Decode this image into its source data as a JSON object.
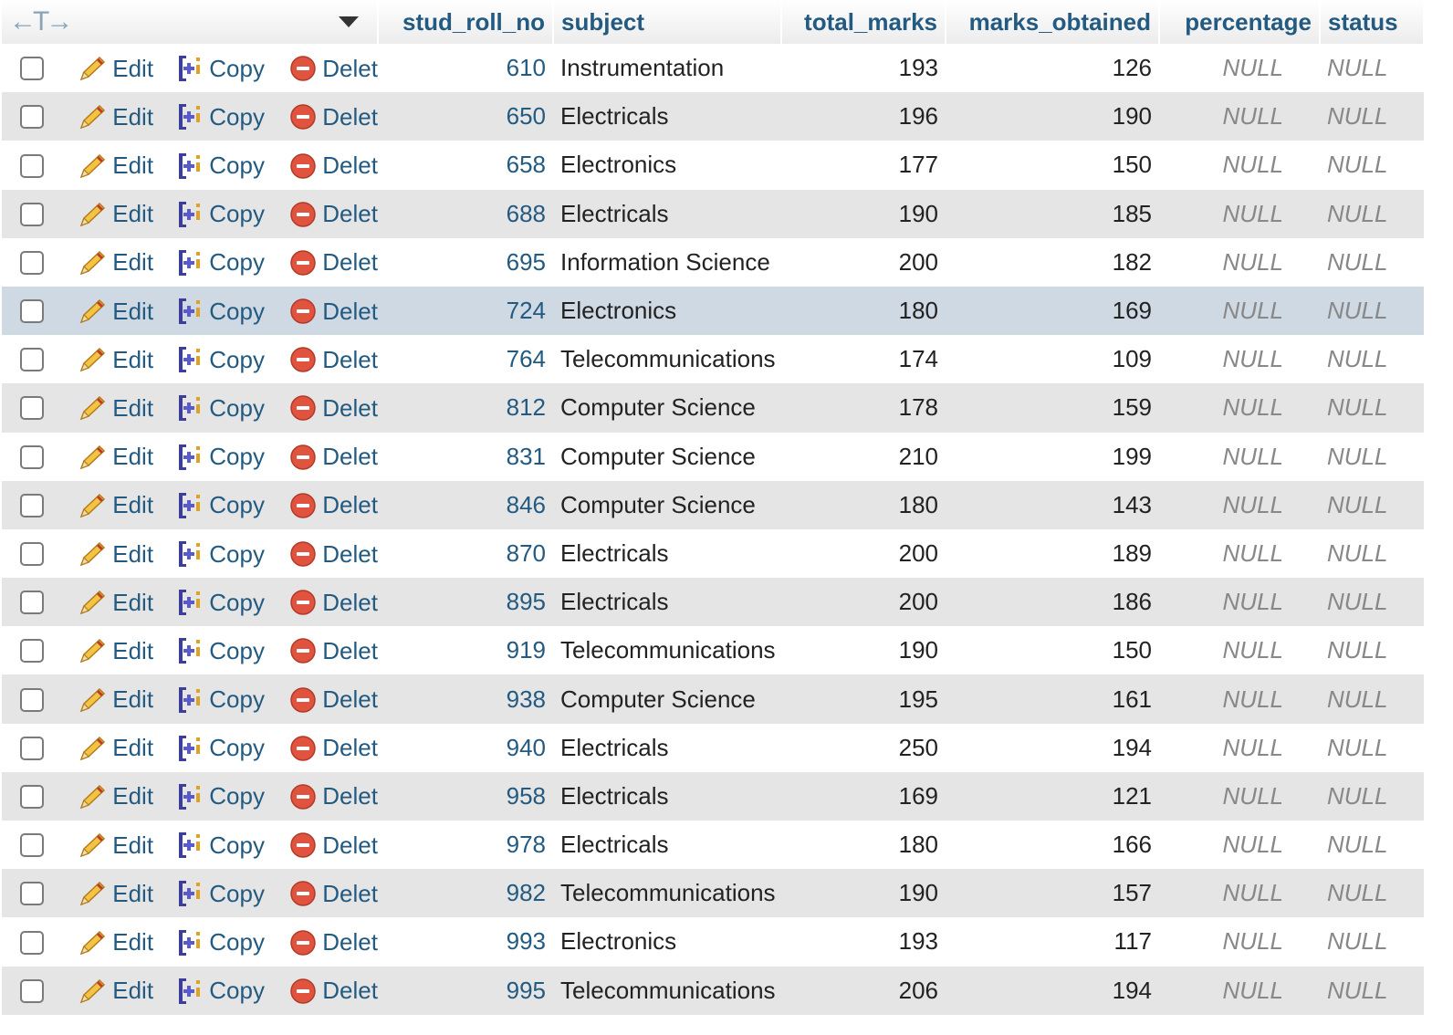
{
  "header": {
    "arrows_label": "←T→",
    "columns": [
      "stud_roll_no",
      "subject",
      "total_marks",
      "marks_obtained",
      "percentage",
      "status"
    ]
  },
  "actions": {
    "edit": "Edit",
    "copy": "Copy",
    "delete": "Delete"
  },
  "rows": [
    {
      "roll": "610",
      "subject": "Instrumentation",
      "total": "193",
      "obtained": "126",
      "percentage": "NULL",
      "status": "NULL"
    },
    {
      "roll": "650",
      "subject": "Electricals",
      "total": "196",
      "obtained": "190",
      "percentage": "NULL",
      "status": "NULL"
    },
    {
      "roll": "658",
      "subject": "Electronics",
      "total": "177",
      "obtained": "150",
      "percentage": "NULL",
      "status": "NULL"
    },
    {
      "roll": "688",
      "subject": "Electricals",
      "total": "190",
      "obtained": "185",
      "percentage": "NULL",
      "status": "NULL"
    },
    {
      "roll": "695",
      "subject": "Information Science",
      "total": "200",
      "obtained": "182",
      "percentage": "NULL",
      "status": "NULL"
    },
    {
      "roll": "724",
      "subject": "Electronics",
      "total": "180",
      "obtained": "169",
      "percentage": "NULL",
      "status": "NULL",
      "highlighted": true
    },
    {
      "roll": "764",
      "subject": "Telecommunications",
      "total": "174",
      "obtained": "109",
      "percentage": "NULL",
      "status": "NULL"
    },
    {
      "roll": "812",
      "subject": "Computer Science",
      "total": "178",
      "obtained": "159",
      "percentage": "NULL",
      "status": "NULL"
    },
    {
      "roll": "831",
      "subject": "Computer Science",
      "total": "210",
      "obtained": "199",
      "percentage": "NULL",
      "status": "NULL"
    },
    {
      "roll": "846",
      "subject": "Computer Science",
      "total": "180",
      "obtained": "143",
      "percentage": "NULL",
      "status": "NULL"
    },
    {
      "roll": "870",
      "subject": "Electricals",
      "total": "200",
      "obtained": "189",
      "percentage": "NULL",
      "status": "NULL"
    },
    {
      "roll": "895",
      "subject": "Electricals",
      "total": "200",
      "obtained": "186",
      "percentage": "NULL",
      "status": "NULL"
    },
    {
      "roll": "919",
      "subject": "Telecommunications",
      "total": "190",
      "obtained": "150",
      "percentage": "NULL",
      "status": "NULL"
    },
    {
      "roll": "938",
      "subject": "Computer Science",
      "total": "195",
      "obtained": "161",
      "percentage": "NULL",
      "status": "NULL"
    },
    {
      "roll": "940",
      "subject": "Electricals",
      "total": "250",
      "obtained": "194",
      "percentage": "NULL",
      "status": "NULL"
    },
    {
      "roll": "958",
      "subject": "Electricals",
      "total": "169",
      "obtained": "121",
      "percentage": "NULL",
      "status": "NULL"
    },
    {
      "roll": "978",
      "subject": "Electricals",
      "total": "180",
      "obtained": "166",
      "percentage": "NULL",
      "status": "NULL"
    },
    {
      "roll": "982",
      "subject": "Telecommunications",
      "total": "190",
      "obtained": "157",
      "percentage": "NULL",
      "status": "NULL"
    },
    {
      "roll": "993",
      "subject": "Electronics",
      "total": "193",
      "obtained": "117",
      "percentage": "NULL",
      "status": "NULL"
    },
    {
      "roll": "995",
      "subject": "Telecommunications",
      "total": "206",
      "obtained": "194",
      "percentage": "NULL",
      "status": "NULL"
    }
  ],
  "colors": {
    "link": "#235a81",
    "row_even": "#e5e5e5",
    "row_highlight": "#ced9e3",
    "null_text": "#888888",
    "delete_icon": "#e0533e"
  },
  "icons": {
    "edit": "pencil-icon",
    "copy": "copy-row-icon",
    "delete": "delete-circle-icon",
    "sort": "caret-down-icon"
  }
}
